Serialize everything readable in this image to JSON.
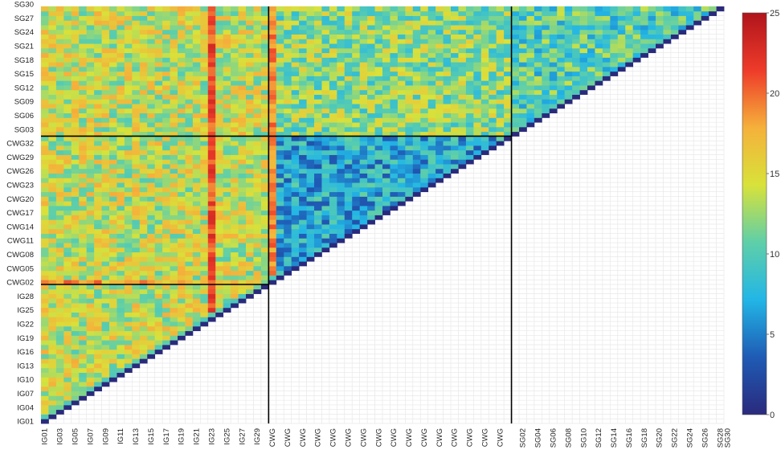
{
  "chart_data": {
    "type": "heatmap",
    "title": "",
    "xlabel": "",
    "ylabel": "",
    "n": 90,
    "groups": [
      {
        "prefix": "IG",
        "count": 30
      },
      {
        "prefix": "CWG",
        "count": 32
      },
      {
        "prefix": "SG",
        "count": 28
      }
    ],
    "y_tick_labels": [
      "IG01",
      "IG04",
      "IG07",
      "IG10",
      "IG13",
      "IG16",
      "IG19",
      "IG22",
      "IG25",
      "IG28",
      "CWG02",
      "CWG05",
      "CWG08",
      "CWG11",
      "CWG14",
      "CWG17",
      "CWG20",
      "CWG23",
      "CWG26",
      "CWG29",
      "CWG32",
      "SG03",
      "SG06",
      "SG09",
      "SG12",
      "SG15",
      "SG18",
      "SG21",
      "SG24",
      "SG27",
      "SG30"
    ],
    "x_tick_labels": [
      "IG01",
      "IG03",
      "IG05",
      "IG07",
      "IG09",
      "IG11",
      "IG13",
      "IG15",
      "IG17",
      "IG19",
      "IG21",
      "IG23",
      "IG25",
      "IG27",
      "IG29",
      "CWG",
      "CWG",
      "CWG",
      "CWG",
      "CWG",
      "CWG",
      "CWG",
      "CWG",
      "CWG",
      "CWG",
      "CWG",
      "CWG",
      "CWG",
      "CWG",
      "CWG",
      "CWG",
      "SG02",
      "SG04",
      "SG06",
      "SG08",
      "SG10",
      "SG12",
      "SG14",
      "SG16",
      "SG18",
      "SG20",
      "SG22",
      "SG24",
      "SG26",
      "SG28",
      "SG30"
    ],
    "diagonal_value": 0,
    "typical_values": {
      "IG_IG": 14,
      "CWG_IG": 14,
      "CWG_CWG": 7,
      "SG_IG": 14,
      "SG_CWG": 12,
      "SG_SG": 10
    },
    "hot_columns": [
      {
        "label": "IG23",
        "value": 21
      },
      {
        "label": "CWG01",
        "value": 19
      }
    ],
    "hot_rows": [
      {
        "label": "SG30",
        "value": 19
      },
      {
        "label": "CWG01",
        "value": 18
      }
    ],
    "group_boundaries": [
      "IG30|CWG01",
      "CWG32|SG01"
    ],
    "colorbar": {
      "min": 0,
      "max": 25,
      "ticks": [
        0,
        5,
        10,
        15,
        20,
        25
      ],
      "colors": [
        "#2a2a7c",
        "#1f5bb5",
        "#22b6e6",
        "#5fcfa8",
        "#d8e23a",
        "#f5b13b",
        "#ee3b2a",
        "#b0141c"
      ]
    },
    "grid": true,
    "legend": "right"
  }
}
